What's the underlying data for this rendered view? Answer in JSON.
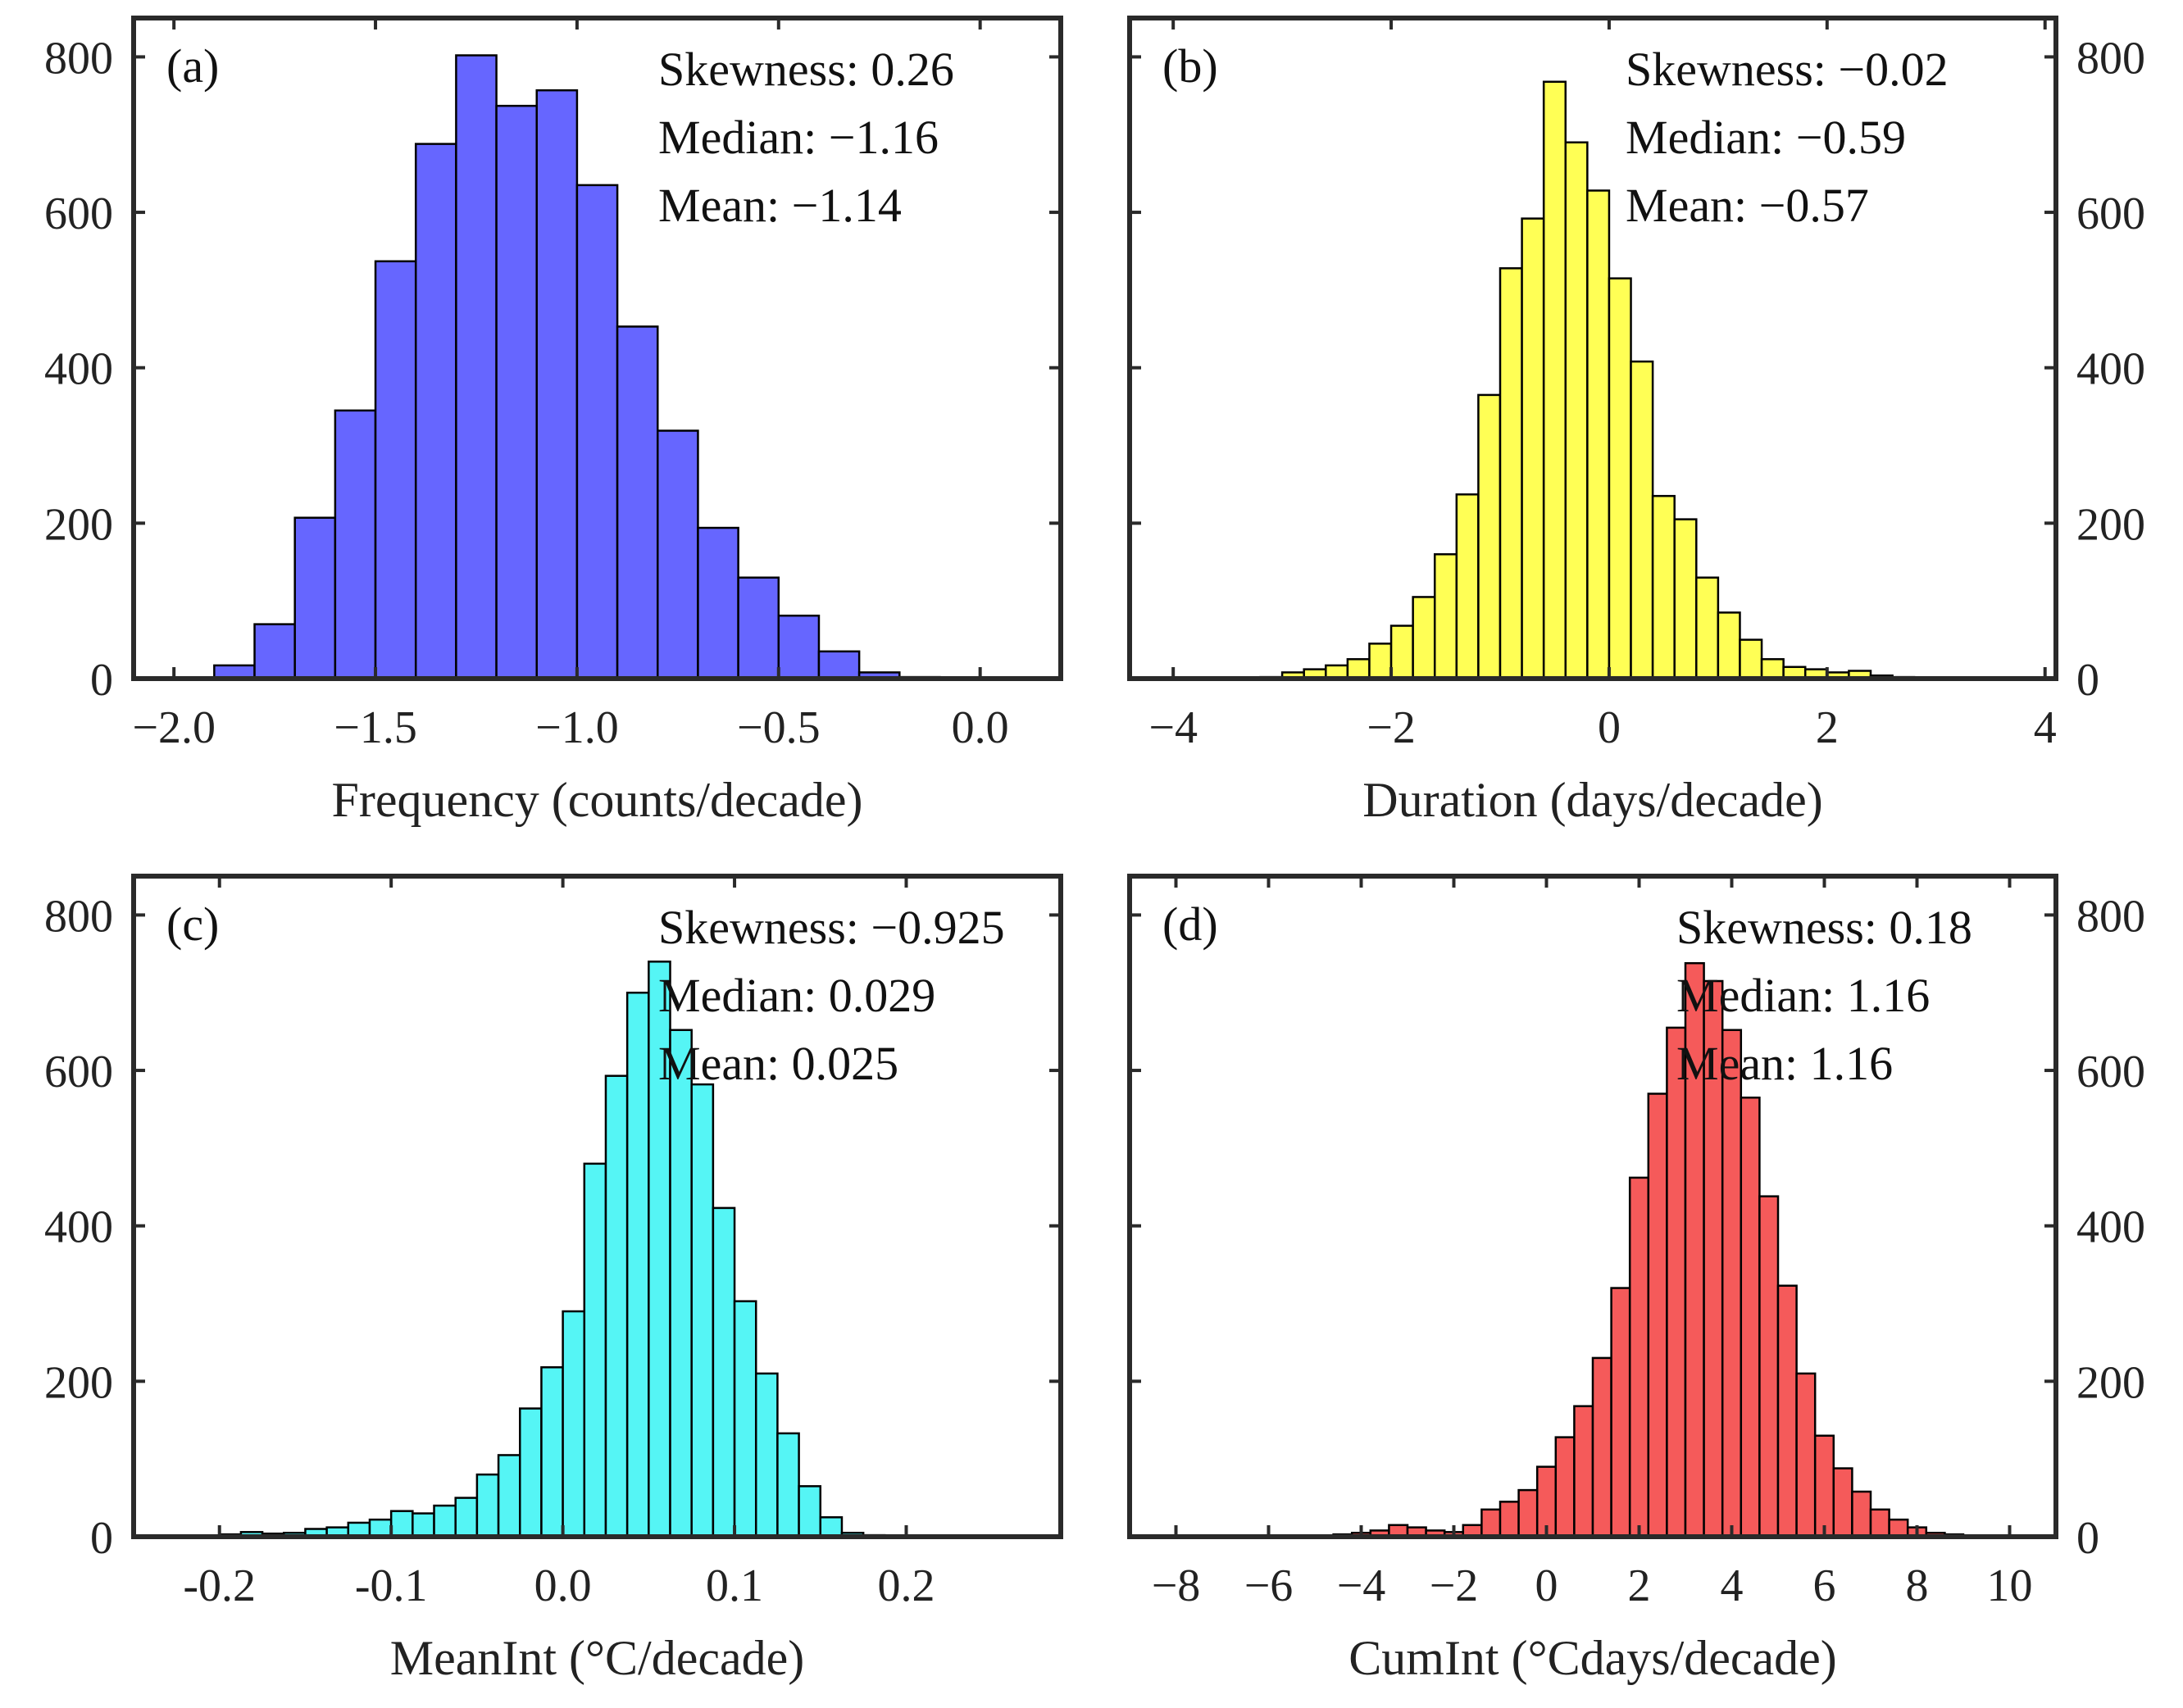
{
  "chart_data": [
    {
      "type": "bar",
      "panel": "(a)",
      "xlabel": "Frequency (counts/decade)",
      "ylabel": "",
      "xlim": [
        -2.1,
        0.2
      ],
      "ylim": [
        0,
        850
      ],
      "xticks": [
        -2.0,
        -1.5,
        -1.0,
        -0.5,
        0.0
      ],
      "xtick_labels": [
        "−2.0",
        "−1.5",
        "−1.0",
        "−0.5",
        "0.0"
      ],
      "yticks": [
        0,
        200,
        400,
        600,
        800
      ],
      "ytick_labels": [
        "0",
        "200",
        "400",
        "600",
        "800"
      ],
      "y_axis_side": "left",
      "color": "#6666FF",
      "bin_start": -1.9,
      "bin_width": 0.1,
      "values": [
        17,
        70,
        207,
        345,
        537,
        688,
        802,
        737,
        757,
        635,
        453,
        319,
        194,
        130,
        81,
        35,
        8,
        2
      ],
      "stats": [
        "Skewness: 0.26",
        "Median: −1.16",
        "Mean: −1.14"
      ]
    },
    {
      "type": "bar",
      "panel": "(b)",
      "xlabel": "Duration (days/decade)",
      "ylabel": "",
      "xlim": [
        -4.4,
        4.1
      ],
      "ylim": [
        0,
        850
      ],
      "xticks": [
        -4,
        -2,
        0,
        2,
        4
      ],
      "xtick_labels": [
        "−4",
        "−2",
        "0",
        "2",
        "4"
      ],
      "yticks": [
        0,
        200,
        400,
        600,
        800
      ],
      "ytick_labels": [
        "0",
        "200",
        "400",
        "600",
        "800"
      ],
      "y_axis_side": "right",
      "color": "#FFFF55",
      "bin_start": -3.2,
      "bin_width": 0.2,
      "values": [
        2,
        8,
        12,
        17,
        25,
        45,
        68,
        105,
        160,
        237,
        365,
        528,
        592,
        768,
        690,
        628,
        515,
        408,
        235,
        205,
        130,
        85,
        50,
        25,
        15,
        12,
        8,
        10,
        4,
        2
      ],
      "stats": [
        "Skewness: −0.02",
        "Median: −0.59",
        "Mean: −0.57"
      ]
    },
    {
      "type": "bar",
      "panel": "(c)",
      "xlabel": "MeanInt (°C/decade)",
      "ylabel": "",
      "xlim": [
        -0.25,
        0.29
      ],
      "ylim": [
        0,
        850
      ],
      "xticks": [
        -0.2,
        -0.1,
        0.0,
        0.1,
        0.2
      ],
      "xtick_labels": [
        "-0.2",
        "-0.1",
        "0.0",
        "0.1",
        "0.2"
      ],
      "yticks": [
        0,
        200,
        400,
        600,
        800
      ],
      "ytick_labels": [
        "0",
        "200",
        "400",
        "600",
        "800"
      ],
      "y_axis_side": "left",
      "color": "#55F5F5",
      "bin_start": -0.2,
      "bin_width": 0.0125,
      "values": [
        3,
        6,
        4,
        5,
        10,
        12,
        18,
        22,
        33,
        30,
        40,
        50,
        80,
        105,
        165,
        218,
        290,
        480,
        593,
        700,
        740,
        652,
        582,
        423,
        303,
        210,
        133,
        65,
        25,
        5,
        2
      ],
      "stats": [
        "Skewness: −0.925",
        "Median: 0.029",
        "Mean: 0.025"
      ]
    },
    {
      "type": "bar",
      "panel": "(d)",
      "xlabel": "CumInt (°Cdays/decade)",
      "ylabel": "",
      "xlim": [
        -9,
        11
      ],
      "ylim": [
        0,
        850
      ],
      "xticks": [
        -8,
        -6,
        -4,
        -2,
        0,
        2,
        4,
        6,
        8,
        10
      ],
      "xtick_labels": [
        "−8",
        "−6",
        "−4",
        "−2",
        "0",
        "2",
        "4",
        "6",
        "8",
        "10"
      ],
      "yticks": [
        0,
        200,
        400,
        600,
        800
      ],
      "ytick_labels": [
        "0",
        "200",
        "400",
        "600",
        "800"
      ],
      "y_axis_side": "right",
      "color": "#F55A5A",
      "bin_start": -4.6,
      "bin_width": 0.4,
      "values": [
        3,
        5,
        8,
        15,
        12,
        8,
        6,
        15,
        35,
        45,
        60,
        90,
        128,
        168,
        230,
        320,
        462,
        570,
        655,
        738,
        715,
        652,
        565,
        438,
        323,
        210,
        130,
        88,
        58,
        35,
        22,
        12,
        5,
        3
      ],
      "stats": [
        "Skewness: 0.18",
        "Median: 1.16",
        "Mean: 1.16"
      ]
    }
  ]
}
